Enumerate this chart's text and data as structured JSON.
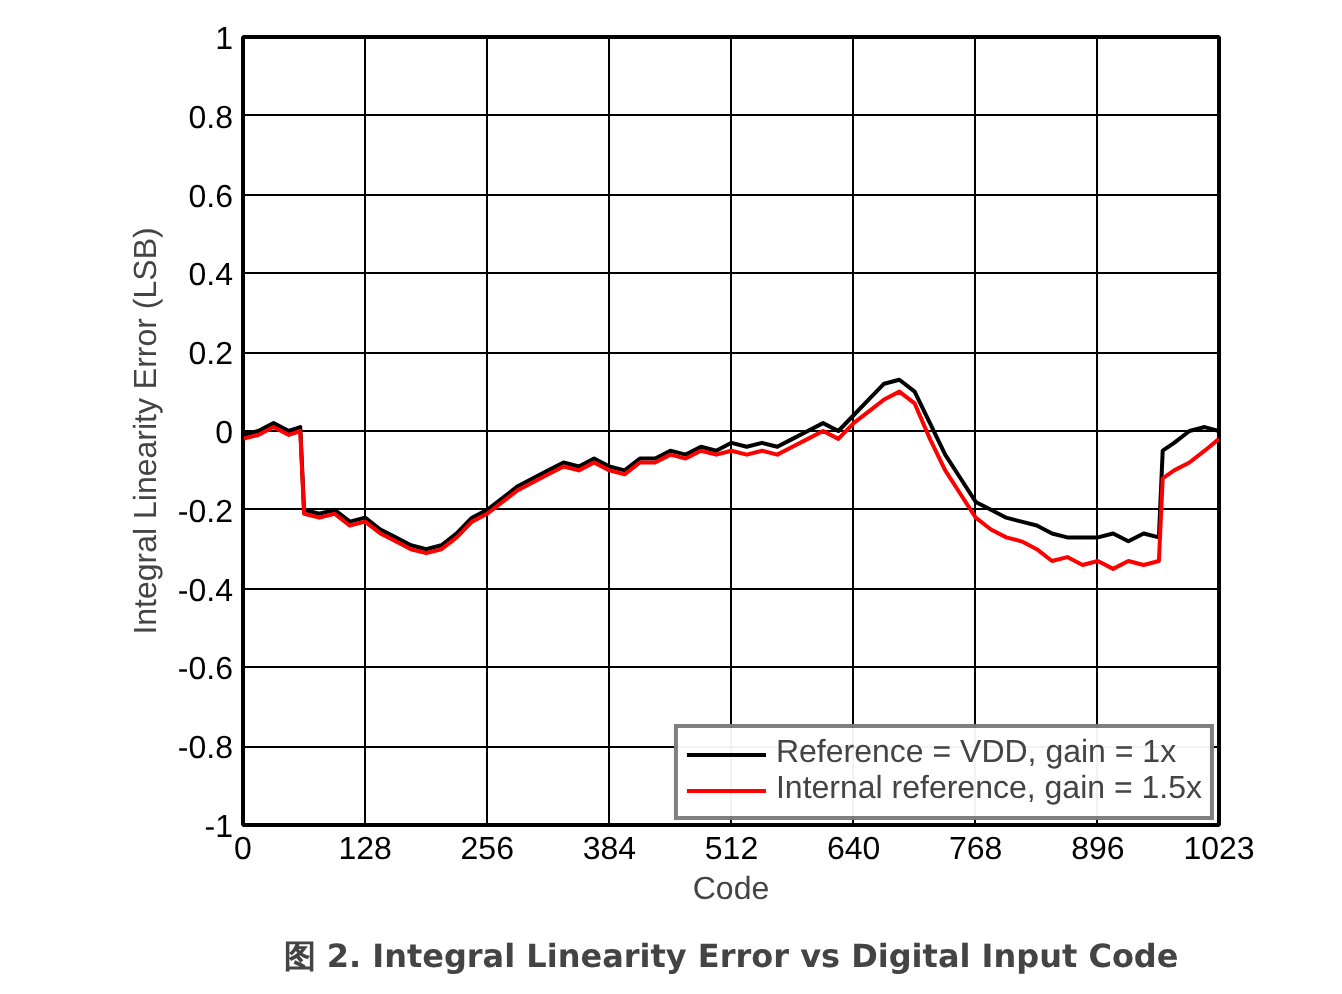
{
  "chart_data": {
    "type": "line",
    "title": "图 2. Integral Linearity Error vs Digital Input Code",
    "xlabel": "Code",
    "ylabel": "Integral Linearity Error (LSB)",
    "xlim": [
      0,
      1023
    ],
    "xticks": [
      0,
      128,
      256,
      384,
      512,
      640,
      768,
      896,
      1023
    ],
    "ylim": [
      -1,
      1
    ],
    "yticks": [
      -1,
      -0.8,
      -0.6,
      -0.4,
      -0.2,
      0,
      0.2,
      0.4,
      0.6,
      0.8,
      1
    ],
    "grid": true,
    "legend": "bottom right",
    "line_style": "solid",
    "x": [
      0,
      16,
      32,
      48,
      60,
      64,
      80,
      96,
      112,
      128,
      144,
      160,
      176,
      192,
      208,
      224,
      240,
      256,
      272,
      288,
      304,
      320,
      336,
      352,
      368,
      384,
      400,
      416,
      432,
      448,
      464,
      480,
      496,
      512,
      528,
      544,
      560,
      576,
      592,
      608,
      624,
      640,
      656,
      672,
      688,
      704,
      720,
      736,
      752,
      768,
      784,
      800,
      816,
      832,
      848,
      864,
      880,
      896,
      912,
      928,
      944,
      960,
      964,
      976,
      992,
      1008,
      1023
    ],
    "series": [
      {
        "name": "Reference = VDD, gain = 1x",
        "color": "#000000",
        "values": [
          -0.01,
          0.0,
          0.02,
          0.0,
          0.01,
          -0.2,
          -0.21,
          -0.2,
          -0.23,
          -0.22,
          -0.25,
          -0.27,
          -0.29,
          -0.3,
          -0.29,
          -0.26,
          -0.22,
          -0.2,
          -0.17,
          -0.14,
          -0.12,
          -0.1,
          -0.08,
          -0.09,
          -0.07,
          -0.09,
          -0.1,
          -0.07,
          -0.07,
          -0.05,
          -0.06,
          -0.04,
          -0.05,
          -0.03,
          -0.04,
          -0.03,
          -0.04,
          -0.02,
          0.0,
          0.02,
          0.0,
          0.04,
          0.08,
          0.12,
          0.13,
          0.1,
          0.02,
          -0.06,
          -0.12,
          -0.18,
          -0.2,
          -0.22,
          -0.23,
          -0.24,
          -0.26,
          -0.27,
          -0.27,
          -0.27,
          -0.26,
          -0.28,
          -0.26,
          -0.27,
          -0.05,
          -0.03,
          0.0,
          0.01,
          0.0
        ]
      },
      {
        "name": "Internal reference, gain = 1.5x",
        "color": "#ff0000",
        "values": [
          -0.02,
          -0.01,
          0.01,
          -0.01,
          0.0,
          -0.21,
          -0.22,
          -0.21,
          -0.24,
          -0.23,
          -0.26,
          -0.28,
          -0.3,
          -0.31,
          -0.3,
          -0.27,
          -0.23,
          -0.21,
          -0.18,
          -0.15,
          -0.13,
          -0.11,
          -0.09,
          -0.1,
          -0.08,
          -0.1,
          -0.11,
          -0.08,
          -0.08,
          -0.06,
          -0.07,
          -0.05,
          -0.06,
          -0.05,
          -0.06,
          -0.05,
          -0.06,
          -0.04,
          -0.02,
          0.0,
          -0.02,
          0.02,
          0.05,
          0.08,
          0.1,
          0.07,
          -0.02,
          -0.1,
          -0.16,
          -0.22,
          -0.25,
          -0.27,
          -0.28,
          -0.3,
          -0.33,
          -0.32,
          -0.34,
          -0.33,
          -0.35,
          -0.33,
          -0.34,
          -0.33,
          -0.12,
          -0.1,
          -0.08,
          -0.05,
          -0.02
        ]
      }
    ]
  }
}
